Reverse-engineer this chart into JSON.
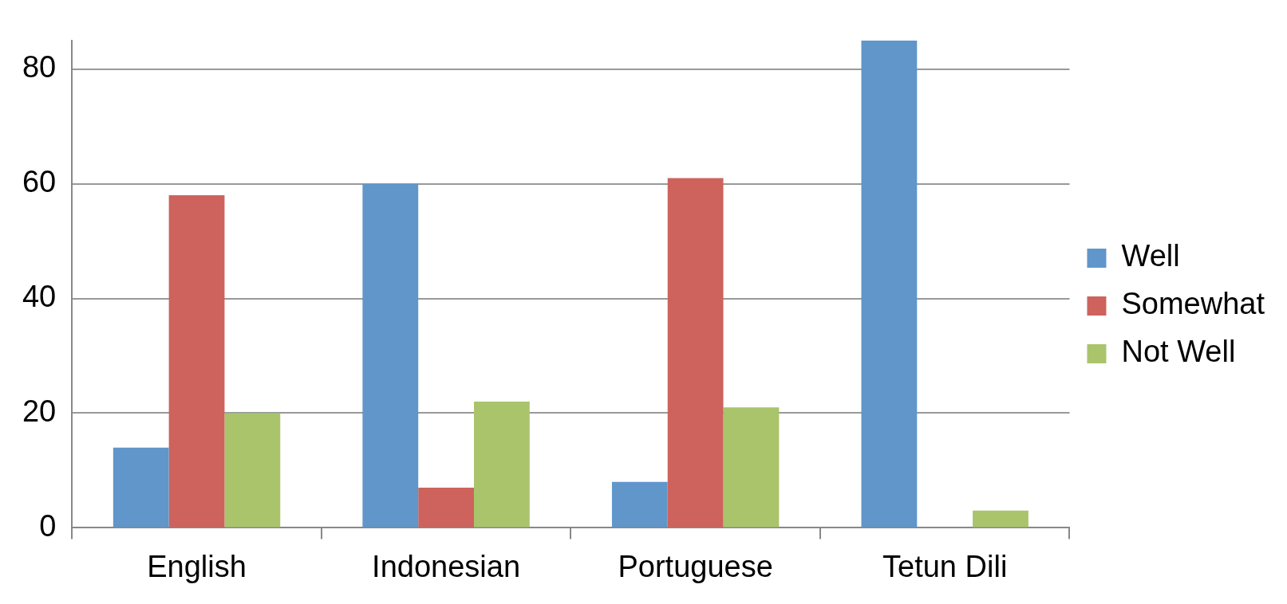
{
  "chart_data": {
    "type": "bar",
    "categories": [
      "English",
      "Indonesian",
      "Portuguese",
      "Tetun Dili"
    ],
    "series": [
      {
        "name": "Well",
        "color": "#6096c9",
        "values": [
          14,
          60,
          8,
          85
        ]
      },
      {
        "name": "Somewhat",
        "color": "#cd635c",
        "values": [
          58,
          7,
          61,
          0
        ]
      },
      {
        "name": "Not Well",
        "color": "#a9c46b",
        "values": [
          20,
          22,
          21,
          3
        ]
      }
    ],
    "ylim": [
      0,
      85
    ],
    "yticks": [
      0,
      20,
      40,
      60,
      80
    ],
    "grid": "y",
    "legend": "right"
  }
}
